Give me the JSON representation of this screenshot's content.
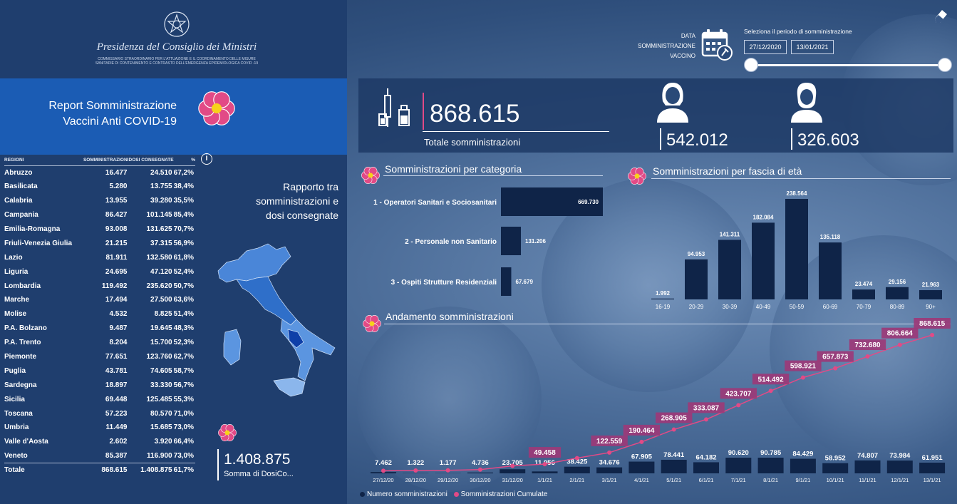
{
  "header": {
    "presidenza": "Presidenza del Consiglio dei Ministri",
    "commissario": "COMMISSARIO STRAORDINARIO PER L'ATTUAZIONE E IL COORDINAMENTO DELLE MISURE SANITARIE DI CONTENIMENTO E CONTRASTO DELL'EMERGENZA EPIDEMIOLOGICA COVID -19",
    "report_title_1": "Report Somministrazione",
    "report_title_2": "Vaccini Anti COVID-19"
  },
  "filter": {
    "data_label_1": "DATA",
    "data_label_2": "SOMMINISTRAZIONE",
    "data_label_3": "VACCINO",
    "period_label": "Seleziona il periodo di somministrazione",
    "date_from": "27/12/2020",
    "date_to": "13/01/2021",
    "slider_range": [
      0,
      1
    ]
  },
  "kpi": {
    "total_value": "868.615",
    "total_label": "Totale somministrazioni",
    "female_value": "542.012",
    "male_value": "326.603"
  },
  "region_table": {
    "headers": [
      "REGIONI",
      "SOMMINISTRAZIONI",
      "DOSI CONSEGNATE",
      "%"
    ],
    "rows": [
      [
        "Abruzzo",
        "16.477",
        "24.510",
        "67,2%"
      ],
      [
        "Basilicata",
        "5.280",
        "13.755",
        "38,4%"
      ],
      [
        "Calabria",
        "13.955",
        "39.280",
        "35,5%"
      ],
      [
        "Campania",
        "86.427",
        "101.145",
        "85,4%"
      ],
      [
        "Emilia-Romagna",
        "93.008",
        "131.625",
        "70,7%"
      ],
      [
        "Friuli-Venezia Giulia",
        "21.215",
        "37.315",
        "56,9%"
      ],
      [
        "Lazio",
        "81.911",
        "132.580",
        "61,8%"
      ],
      [
        "Liguria",
        "24.695",
        "47.120",
        "52,4%"
      ],
      [
        "Lombardia",
        "119.492",
        "235.620",
        "50,7%"
      ],
      [
        "Marche",
        "17.494",
        "27.500",
        "63,6%"
      ],
      [
        "Molise",
        "4.532",
        "8.825",
        "51,4%"
      ],
      [
        "P.A. Bolzano",
        "9.487",
        "19.645",
        "48,3%"
      ],
      [
        "P.A. Trento",
        "8.204",
        "15.700",
        "52,3%"
      ],
      [
        "Piemonte",
        "77.651",
        "123.760",
        "62,7%"
      ],
      [
        "Puglia",
        "43.781",
        "74.605",
        "58,7%"
      ],
      [
        "Sardegna",
        "18.897",
        "33.330",
        "56,7%"
      ],
      [
        "Sicilia",
        "69.448",
        "125.485",
        "55,3%"
      ],
      [
        "Toscana",
        "57.223",
        "80.570",
        "71,0%"
      ],
      [
        "Umbria",
        "11.449",
        "15.685",
        "73,0%"
      ],
      [
        "Valle d'Aosta",
        "2.602",
        "3.920",
        "66,4%"
      ],
      [
        "Veneto",
        "85.387",
        "116.900",
        "73,0%"
      ]
    ],
    "total": [
      "Totale",
      "868.615",
      "1.408.875",
      "61,7%"
    ]
  },
  "map": {
    "title": "Rapporto tra somministrazioni e dosi consegnate",
    "somma_value": "1.408.875",
    "somma_label": "Somma di DosiCo..."
  },
  "sections": {
    "categoria": "Somministrazioni per categoria",
    "eta": "Somministrazioni per fascia di età",
    "andamento": "Andamento somministrazioni"
  },
  "legend": {
    "numero": "Numero somministrazioni",
    "cumulate": "Somministrazioni Cumulate"
  },
  "colors": {
    "accent_pink": "#e24a86",
    "bar_navy": "#0f2448",
    "label_box": "#9c3a78",
    "title_band": "#1b5cb4"
  },
  "icons": [
    "eraser-icon",
    "calendar-icon",
    "vaccine-icon",
    "female-icon",
    "male-icon",
    "flower-icon",
    "info-icon",
    "emblem-icon"
  ],
  "chart_data": [
    {
      "type": "bar",
      "orientation": "horizontal",
      "title": "Somministrazioni per categoria",
      "categories": [
        "1 - Operatori Sanitari e Sociosanitari",
        "2 - Personale non Sanitario",
        "3 - Ospiti Strutture Residenziali"
      ],
      "values": [
        669730,
        131206,
        67679
      ],
      "value_labels": [
        "669.730",
        "131.206",
        "67.679"
      ]
    },
    {
      "type": "bar",
      "title": "Somministrazioni per fascia di età",
      "categories": [
        "16-19",
        "20-29",
        "30-39",
        "40-49",
        "50-59",
        "60-69",
        "70-79",
        "80-89",
        "90+"
      ],
      "values": [
        1992,
        94953,
        141311,
        182084,
        238564,
        135118,
        23474,
        29156,
        21963
      ],
      "value_labels": [
        "1.992",
        "94.953",
        "141.311",
        "182.084",
        "238.564",
        "135.118",
        "23.474",
        "29.156",
        "21.963"
      ]
    },
    {
      "type": "bar",
      "title": "Andamento somministrazioni",
      "categories": [
        "27/12/20",
        "28/12/20",
        "29/12/20",
        "30/12/20",
        "31/12/20",
        "1/1/21",
        "2/1/21",
        "3/1/21",
        "4/1/21",
        "5/1/21",
        "6/1/21",
        "7/1/21",
        "8/1/21",
        "9/1/21",
        "10/1/21",
        "11/1/21",
        "12/1/21",
        "13/1/21"
      ],
      "series": [
        {
          "name": "Numero somministrazioni",
          "type": "bar",
          "values": [
            7462,
            1322,
            1177,
            4736,
            23705,
            11056,
            38425,
            34676,
            67905,
            78441,
            64182,
            90620,
            90785,
            84429,
            58952,
            74807,
            73984,
            61951
          ],
          "value_labels": [
            "7.462",
            "1.322",
            "1.177",
            "4.736",
            "23.705",
            "11.056",
            "38.425",
            "34.676",
            "67.905",
            "78.441",
            "64.182",
            "90.620",
            "90.785",
            "84.429",
            "58.952",
            "74.807",
            "73.984",
            "61.951"
          ]
        },
        {
          "name": "Somministrazioni Cumulate",
          "type": "line",
          "values": [
            7462,
            8784,
            9961,
            14697,
            38402,
            49458,
            87883,
            122559,
            190464,
            268905,
            333087,
            423707,
            514492,
            598921,
            657873,
            732680,
            806664,
            868615
          ],
          "value_labels": [
            "",
            "",
            "",
            "",
            "",
            "49.458",
            "",
            "122.559",
            "190.464",
            "268.905",
            "333.087",
            "423.707",
            "514.492",
            "598.921",
            "657.873",
            "732.680",
            "806.664",
            "868.615"
          ]
        }
      ]
    }
  ]
}
